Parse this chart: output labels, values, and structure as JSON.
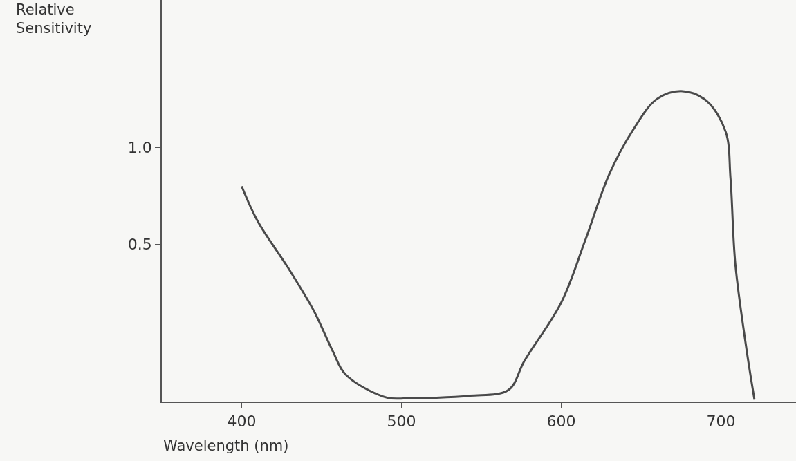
{
  "chart_data": {
    "type": "line",
    "xlabel": "Wavelength (nm)",
    "ylabel": "Relative\nSensitivity",
    "x": [
      400,
      410,
      429,
      445,
      457,
      465,
      491,
      508,
      522,
      543,
      567,
      577,
      600,
      615,
      630,
      645,
      660,
      676,
      691,
      703,
      706,
      709,
      716,
      721
    ],
    "series": [
      {
        "color": "#4a4a4a",
        "values": [
          0.8,
          0.62,
          0.38,
          0.16,
          -0.05,
          -0.17,
          -0.29,
          -0.29,
          -0.29,
          -0.28,
          -0.25,
          -0.1,
          0.2,
          0.52,
          0.86,
          1.09,
          1.25,
          1.29,
          1.24,
          1.08,
          0.84,
          0.4,
          -0.04,
          -0.3
        ]
      }
    ],
    "xlim": [
      350,
      747
    ],
    "ylim": [
      -0.31,
      1.76
    ],
    "xticks": [
      400,
      500,
      600,
      700
    ],
    "yticks": [
      0.5,
      {
        "value": 1.0,
        "label": "1.0"
      }
    ],
    "grid": false,
    "marker": "none",
    "line_style": "solid"
  }
}
